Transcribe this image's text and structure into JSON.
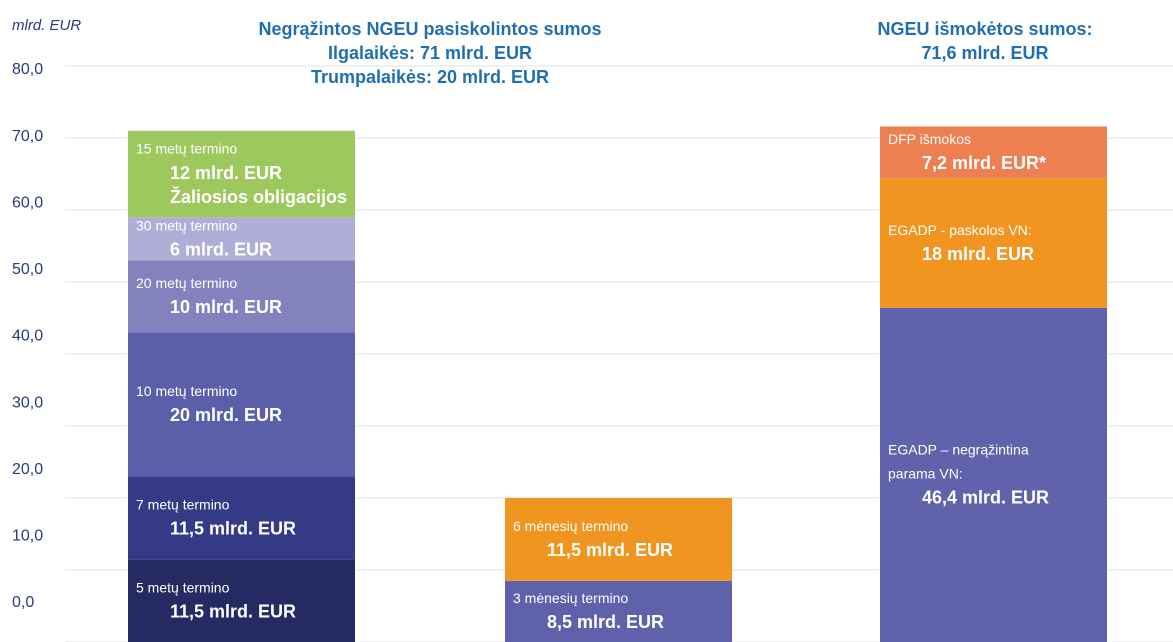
{
  "chart_data": {
    "type": "bar",
    "stacked": true,
    "y_label": "mlrd. EUR",
    "ylim": [
      0,
      80
    ],
    "yticks": [
      {
        "value": 0,
        "label": "0,0"
      },
      {
        "value": 10,
        "label": "10,0"
      },
      {
        "value": 20,
        "label": "20,0"
      },
      {
        "value": 30,
        "label": "30,0"
      },
      {
        "value": 40,
        "label": "40,0"
      },
      {
        "value": 50,
        "label": "50,0"
      },
      {
        "value": 60,
        "label": "60,0"
      },
      {
        "value": 70,
        "label": "70,0"
      },
      {
        "value": 80,
        "label": "80,0"
      }
    ],
    "grid": true,
    "titles": [
      {
        "lines": [
          "Negrąžintos NGEU pasiskolintos sumos",
          "Ilgalaikės: 71 mlrd. EUR",
          "Trumpalaikės: 20 mlrd. EUR"
        ]
      },
      {
        "lines": [
          "NGEU išmokėtos sumos:",
          "71,6 mlrd. EUR"
        ]
      }
    ],
    "bars": [
      {
        "segments": [
          {
            "lines": [
              "5 metų termino"
            ],
            "value": 11.5,
            "value_label": "11,5 mlrd. EUR",
            "color": "#252a63"
          },
          {
            "lines": [
              "7 metų termino"
            ],
            "value": 11.5,
            "value_label": "11,5 mlrd. EUR",
            "color": "#353a86"
          },
          {
            "lines": [
              "10 metų termino"
            ],
            "value": 20,
            "value_label": "20 mlrd. EUR",
            "color": "#5b5ea8"
          },
          {
            "lines": [
              "20 metų termino"
            ],
            "value": 10,
            "value_label": "10 mlrd. EUR",
            "color": "#8381be"
          },
          {
            "lines": [
              "30 metų termino"
            ],
            "value": 6,
            "value_label": "6 mlrd. EUR",
            "color": "#b0aed6"
          },
          {
            "lines": [
              "15 metų termino"
            ],
            "value": 12,
            "value_label": "12 mlrd. EUR",
            "note": "Žaliosios obligacijos",
            "color": "#9dc85d"
          }
        ]
      },
      {
        "segments": [
          {
            "lines": [
              "3 mėnesių termino"
            ],
            "value": 8.5,
            "value_label": "8,5 mlrd. EUR",
            "color": "#5f61ab"
          },
          {
            "lines": [
              "6 mėnesių termino"
            ],
            "value": 11.5,
            "value_label": "11,5 mlrd. EUR",
            "color": "#f0951f"
          }
        ]
      },
      {
        "segments": [
          {
            "lines": [
              "EGADP – negrąžintina",
              "parama VN:"
            ],
            "value": 46.4,
            "value_label": "46,4 mlrd. EUR",
            "color": "#6062ab"
          },
          {
            "lines": [
              "EGADP - paskolos VN:"
            ],
            "value": 18,
            "value_label": "18 mlrd. EUR",
            "color": "#f19420"
          },
          {
            "lines": [
              "DFP išmokos"
            ],
            "value": 7.2,
            "value_label": "7,2 mlrd. EUR*",
            "color": "#ee7f50"
          }
        ]
      }
    ]
  }
}
